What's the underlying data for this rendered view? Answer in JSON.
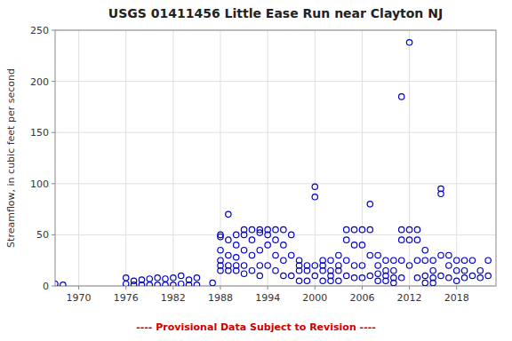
{
  "chart_data": {
    "type": "scatter",
    "title": "USGS 01411456 Little Ease Run near Clayton NJ",
    "y_label": "Streamflow, in cubic feet per second",
    "annotations": [
      {
        "text": "---- Provisional Data Subject to Revision ----",
        "color": "#cc0000"
      }
    ],
    "color": "#0000cc",
    "marker": "open-circle",
    "grid": true,
    "xlim": [
      1967,
      2023
    ],
    "ylim": [
      0,
      250
    ],
    "xticks": [
      1970,
      1976,
      1982,
      1988,
      1994,
      2000,
      2006,
      2012,
      2018
    ],
    "yticks": [
      0,
      50,
      100,
      150,
      200,
      250
    ],
    "x": [
      1967,
      1968,
      1976,
      1976,
      1977,
      1977,
      1978,
      1978,
      1979,
      1979,
      1980,
      1980,
      1981,
      1981,
      1982,
      1982,
      1983,
      1983,
      1984,
      1984,
      1985,
      1985,
      1987,
      1988,
      1988,
      1988,
      1988,
      1988,
      1988,
      1989,
      1989,
      1989,
      1989,
      1989,
      1990,
      1990,
      1990,
      1990,
      1990,
      1991,
      1991,
      1991,
      1991,
      1991,
      1992,
      1992,
      1992,
      1992,
      1993,
      1993,
      1993,
      1993,
      1993,
      1994,
      1994,
      1994,
      1994,
      1995,
      1995,
      1995,
      1995,
      1996,
      1996,
      1996,
      1996,
      1997,
      1997,
      1997,
      1998,
      1998,
      1998,
      1998,
      1999,
      1999,
      1999,
      2000,
      2000,
      2000,
      2000,
      2001,
      2001,
      2001,
      2001,
      2002,
      2002,
      2002,
      2002,
      2003,
      2003,
      2003,
      2003,
      2004,
      2004,
      2004,
      2004,
      2005,
      2005,
      2005,
      2005,
      2006,
      2006,
      2006,
      2006,
      2007,
      2007,
      2007,
      2007,
      2008,
      2008,
      2008,
      2008,
      2009,
      2009,
      2009,
      2009,
      2010,
      2010,
      2010,
      2010,
      2011,
      2011,
      2011,
      2011,
      2011,
      2012,
      2012,
      2012,
      2012,
      2013,
      2013,
      2013,
      2013,
      2014,
      2014,
      2014,
      2014,
      2015,
      2015,
      2015,
      2015,
      2016,
      2016,
      2016,
      2016,
      2017,
      2017,
      2017,
      2018,
      2018,
      2018,
      2019,
      2019,
      2019,
      2020,
      2020,
      2021,
      2021,
      2022,
      2022
    ],
    "values": [
      2,
      1,
      8,
      2,
      5,
      1,
      6,
      1,
      7,
      1,
      8,
      1,
      7,
      1,
      8,
      1,
      10,
      2,
      6,
      1,
      8,
      1,
      3,
      50,
      48,
      35,
      25,
      20,
      15,
      70,
      45,
      30,
      20,
      15,
      50,
      40,
      28,
      20,
      15,
      55,
      50,
      35,
      20,
      12,
      55,
      45,
      30,
      15,
      55,
      52,
      35,
      20,
      10,
      55,
      50,
      40,
      20,
      55,
      45,
      30,
      15,
      55,
      40,
      25,
      10,
      50,
      30,
      10,
      25,
      20,
      15,
      5,
      20,
      15,
      5,
      97,
      87,
      20,
      10,
      25,
      20,
      15,
      5,
      25,
      15,
      10,
      5,
      30,
      20,
      15,
      5,
      55,
      45,
      25,
      10,
      55,
      40,
      20,
      8,
      55,
      40,
      20,
      8,
      80,
      55,
      30,
      10,
      30,
      20,
      12,
      5,
      25,
      15,
      10,
      5,
      25,
      15,
      8,
      3,
      55,
      45,
      25,
      8,
      185,
      238,
      55,
      45,
      20,
      55,
      45,
      25,
      8,
      35,
      25,
      10,
      3,
      25,
      15,
      8,
      3,
      95,
      90,
      30,
      10,
      30,
      20,
      8,
      25,
      15,
      5,
      25,
      15,
      8,
      25,
      10,
      15,
      8,
      25,
      10
    ]
  }
}
